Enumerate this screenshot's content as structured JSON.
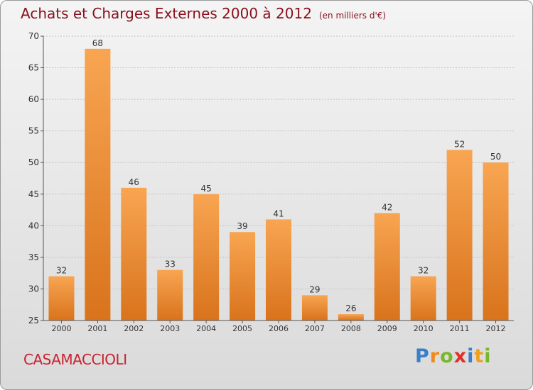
{
  "title": "Achats et Charges Externes 2000 à 2012",
  "subtitle": "(en milliers d'€)",
  "commune": "CASAMACCIOLI",
  "logo": {
    "parts": [
      "P",
      "r",
      "o",
      "x",
      "i",
      "t",
      "i"
    ],
    "colors": [
      "#3a7fc8",
      "#f08a1c",
      "#76b82a",
      "#e0302a",
      "#3a7fc8",
      "#f0a01c",
      "#76b82a"
    ]
  },
  "colors": {
    "bar_top": "#f8a552",
    "bar_bottom": "#d9731c",
    "title": "#8a0f1c",
    "commune": "#c8222f"
  },
  "chart_data": {
    "type": "bar",
    "title": "Achats et Charges Externes 2000 à 2012",
    "subtitle": "(en milliers d'€)",
    "categories": [
      "2000",
      "2001",
      "2002",
      "2003",
      "2004",
      "2005",
      "2006",
      "2007",
      "2008",
      "2009",
      "2010",
      "2011",
      "2012"
    ],
    "values": [
      32,
      68,
      46,
      33,
      45,
      39,
      41,
      29,
      26,
      42,
      32,
      52,
      50
    ],
    "ylim": [
      25,
      70
    ],
    "yticks": [
      25,
      30,
      35,
      40,
      45,
      50,
      55,
      60,
      65,
      70
    ],
    "grid": true,
    "xlabel": "",
    "ylabel": ""
  }
}
